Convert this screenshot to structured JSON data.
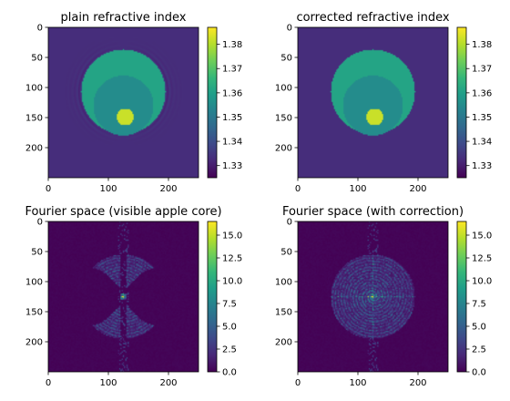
{
  "figure": {
    "colormap": "viridis",
    "colormap_stops": [
      "#440154",
      "#482878",
      "#3e4989",
      "#31688e",
      "#26828e",
      "#1f9e89",
      "#35b779",
      "#6ece58",
      "#b5de2b",
      "#fde725"
    ]
  },
  "chart_data": [
    {
      "type": "heatmap",
      "title": "plain refractive index",
      "xlim": [
        0,
        250
      ],
      "ylim": [
        250,
        0
      ],
      "x_ticks": [
        0,
        100,
        200
      ],
      "y_ticks": [
        0,
        50,
        100,
        150,
        200
      ],
      "colorbar": {
        "range": [
          1.325,
          1.387
        ],
        "ticks": [
          1.33,
          1.34,
          1.35,
          1.36,
          1.37,
          1.38
        ],
        "tick_labels": [
          "1.33",
          "1.34",
          "1.35",
          "1.36",
          "1.37",
          "1.38"
        ]
      },
      "content": {
        "kind": "index",
        "background": 1.333,
        "outer_disk": {
          "center": [
            125,
            107
          ],
          "radius": 70,
          "value": 1.361
        },
        "inner_disk": {
          "center": [
            125,
            130
          ],
          "radius": 50,
          "value": 1.355
        },
        "core": {
          "center": [
            128,
            149
          ],
          "radius": 14,
          "value": 1.382
        },
        "edge_ripples": true
      }
    },
    {
      "type": "heatmap",
      "title": "corrected refractive index",
      "xlim": [
        0,
        250
      ],
      "ylim": [
        250,
        0
      ],
      "x_ticks": [
        0,
        100,
        200
      ],
      "y_ticks": [
        0,
        50,
        100,
        150,
        200
      ],
      "colorbar": {
        "range": [
          1.325,
          1.387
        ],
        "ticks": [
          1.33,
          1.34,
          1.35,
          1.36,
          1.37,
          1.38
        ],
        "tick_labels": [
          "1.33",
          "1.34",
          "1.35",
          "1.36",
          "1.37",
          "1.38"
        ]
      },
      "content": {
        "kind": "index",
        "background": 1.333,
        "outer_disk": {
          "center": [
            125,
            107
          ],
          "radius": 70,
          "value": 1.361
        },
        "inner_disk": {
          "center": [
            125,
            130
          ],
          "radius": 50,
          "value": 1.355
        },
        "core": {
          "center": [
            128,
            149
          ],
          "radius": 14,
          "value": 1.382
        },
        "edge_ripples": false
      }
    },
    {
      "type": "heatmap",
      "title": "Fourier space (visible apple core)",
      "xlim": [
        0,
        250
      ],
      "ylim": [
        250,
        0
      ],
      "x_ticks": [
        0,
        100,
        200
      ],
      "y_ticks": [
        0,
        50,
        100,
        150,
        200
      ],
      "colorbar": {
        "range": [
          0,
          16.5
        ],
        "ticks": [
          0,
          2.5,
          5,
          7.5,
          10,
          12.5,
          15
        ],
        "tick_labels": [
          "0.0",
          "2.5",
          "5.0",
          "7.5",
          "10.0",
          "12.5",
          "15.0"
        ]
      },
      "content": {
        "kind": "fourier",
        "center": [
          125,
          125
        ],
        "radius": 70,
        "apple_core": true,
        "peak": 15.6
      }
    },
    {
      "type": "heatmap",
      "title": "Fourier space (with correction)",
      "xlim": [
        0,
        250
      ],
      "ylim": [
        250,
        0
      ],
      "x_ticks": [
        0,
        100,
        200
      ],
      "y_ticks": [
        0,
        50,
        100,
        150,
        200
      ],
      "colorbar": {
        "range": [
          0,
          16.5
        ],
        "ticks": [
          0,
          2.5,
          5,
          7.5,
          10,
          12.5,
          15
        ],
        "tick_labels": [
          "0.0",
          "2.5",
          "5.0",
          "7.5",
          "10.0",
          "12.5",
          "15.0"
        ]
      },
      "content": {
        "kind": "fourier",
        "center": [
          125,
          125
        ],
        "radius": 70,
        "apple_core": false,
        "peak": 15.6
      }
    }
  ]
}
